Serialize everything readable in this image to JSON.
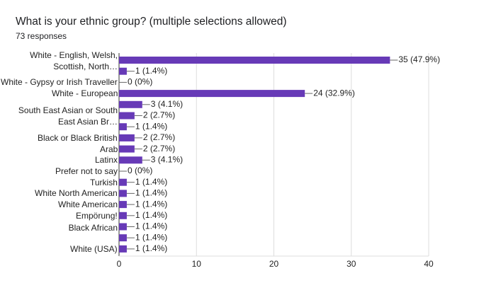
{
  "chart_data": {
    "type": "bar",
    "orientation": "horizontal",
    "title": "What is your ethnic group? (multiple selections allowed)",
    "subtitle": "73 responses",
    "categories": [
      "White - English, Welsh, Scottish, North…",
      null,
      "White - Gypsy or Irish Traveller",
      "White - European",
      "South East Asian or South East Asian Br…",
      null,
      null,
      "Black or Black British",
      "Arab",
      "Latinx",
      "Prefer not to say",
      "Turkish",
      "White North American",
      "White American",
      "Empörung!",
      "Black African",
      null,
      "White (USA)"
    ],
    "values": [
      35,
      1,
      0,
      24,
      3,
      2,
      1,
      2,
      2,
      3,
      0,
      1,
      1,
      1,
      1,
      1,
      1,
      1
    ],
    "value_labels": [
      "35 (47.9%)",
      "1 (1.4%)",
      "0 (0%)",
      "24 (32.9%)",
      "3 (4.1%)",
      "2 (2.7%)",
      "1 (1.4%)",
      "2 (2.7%)",
      "2 (2.7%)",
      "3 (4.1%)",
      "0 (0%)",
      "1 (1.4%)",
      "1 (1.4%)",
      "1 (1.4%)",
      "1 (1.4%)",
      "1 (1.4%)",
      "1 (1.4%)",
      "1 (1.4%)"
    ],
    "color": "#673ab7",
    "xlim": [
      0,
      40
    ],
    "xticks": [
      0,
      10,
      20,
      30,
      40
    ],
    "grid": true
  }
}
